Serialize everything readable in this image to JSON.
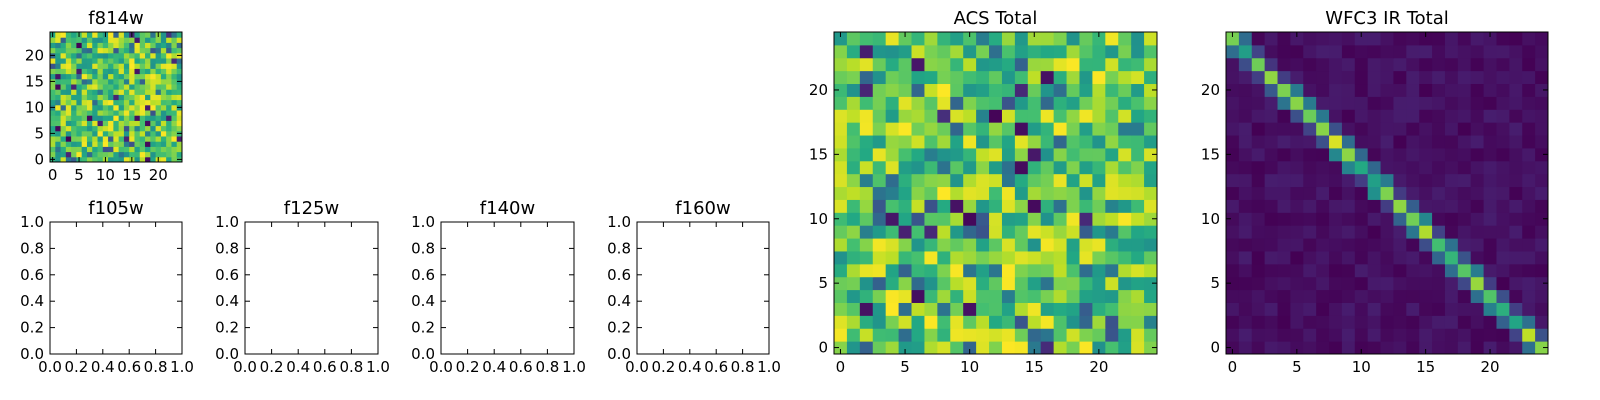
{
  "chart_data": [
    {
      "type": "heatmap",
      "title": "f814w",
      "xticks": [
        "0",
        "5",
        "10",
        "15",
        "20"
      ],
      "yticks": [
        "0",
        "5",
        "10",
        "15",
        "20"
      ],
      "xlim": [
        -0.5,
        24.5
      ],
      "ylim": [
        -0.5,
        24.5
      ],
      "grid": false,
      "colormap": "viridis",
      "pattern": "random",
      "seed": 11,
      "values": null
    },
    {
      "type": "empty",
      "title": "f105w",
      "xticks": [
        "0.0",
        "0.2",
        "0.4",
        "0.6",
        "0.8",
        "1.0"
      ],
      "yticks": [
        "0.0",
        "0.2",
        "0.4",
        "0.6",
        "0.8",
        "1.0"
      ],
      "xlim": [
        0,
        1
      ],
      "ylim": [
        0,
        1
      ]
    },
    {
      "type": "empty",
      "title": "f125w",
      "xticks": [
        "0.0",
        "0.2",
        "0.4",
        "0.6",
        "0.8",
        "1.0"
      ],
      "yticks": [
        "0.0",
        "0.2",
        "0.4",
        "0.6",
        "0.8",
        "1.0"
      ],
      "xlim": [
        0,
        1
      ],
      "ylim": [
        0,
        1
      ]
    },
    {
      "type": "empty",
      "title": "f140w",
      "xticks": [
        "0.0",
        "0.2",
        "0.4",
        "0.6",
        "0.8",
        "1.0"
      ],
      "yticks": [
        "0.0",
        "0.2",
        "0.4",
        "0.6",
        "0.8",
        "1.0"
      ],
      "xlim": [
        0,
        1
      ],
      "ylim": [
        0,
        1
      ]
    },
    {
      "type": "empty",
      "title": "f160w",
      "xticks": [
        "0.0",
        "0.2",
        "0.4",
        "0.6",
        "0.8",
        "1.0"
      ],
      "yticks": [
        "0.0",
        "0.2",
        "0.4",
        "0.6",
        "0.8",
        "1.0"
      ],
      "xlim": [
        0,
        1
      ],
      "ylim": [
        0,
        1
      ]
    },
    {
      "type": "heatmap",
      "title": "ACS Total",
      "xticks": [
        "0",
        "5",
        "10",
        "15",
        "20"
      ],
      "yticks": [
        "0",
        "5",
        "10",
        "15",
        "20"
      ],
      "xlim": [
        -0.5,
        24.5
      ],
      "ylim": [
        -0.5,
        24.5
      ],
      "grid": false,
      "colormap": "viridis",
      "pattern": "random",
      "seed": 37,
      "values": null
    },
    {
      "type": "heatmap",
      "title": "WFC3 IR Total",
      "xticks": [
        "0",
        "5",
        "10",
        "15",
        "20"
      ],
      "yticks": [
        "0",
        "5",
        "10",
        "15",
        "20"
      ],
      "xlim": [
        -0.5,
        24.5
      ],
      "ylim": [
        -0.5,
        24.5
      ],
      "grid": false,
      "colormap": "viridis",
      "pattern": "diagonal",
      "seed": 5,
      "values": null
    }
  ]
}
